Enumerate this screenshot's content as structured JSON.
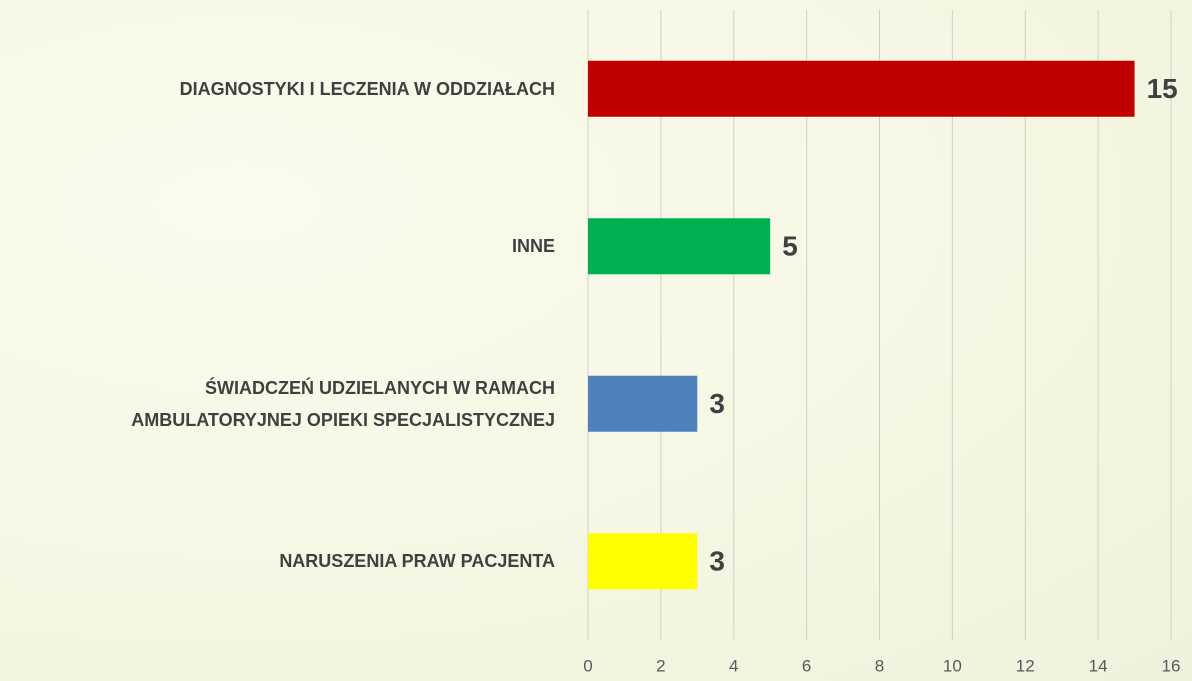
{
  "chart_data": {
    "type": "barh",
    "categories": [
      "DIAGNOSTYKI I LECZENIA  W ODDZIAŁACH",
      "INNE",
      "ŚWIADCZEŃ UDZIELANYCH W RAMACH\nAMBULATORYJNEJ OPIEKI SPECJALISTYCZNEJ",
      "NARUSZENIA PRAW PACJENTA"
    ],
    "values": [
      15,
      5,
      3,
      3
    ],
    "colors": [
      "#c00000",
      "#00b050",
      "#4f81bd",
      "#ffff00"
    ],
    "xlim": [
      0,
      16
    ],
    "xticks": [
      0,
      2,
      4,
      6,
      8,
      10,
      12,
      14,
      16
    ],
    "grid": true
  }
}
